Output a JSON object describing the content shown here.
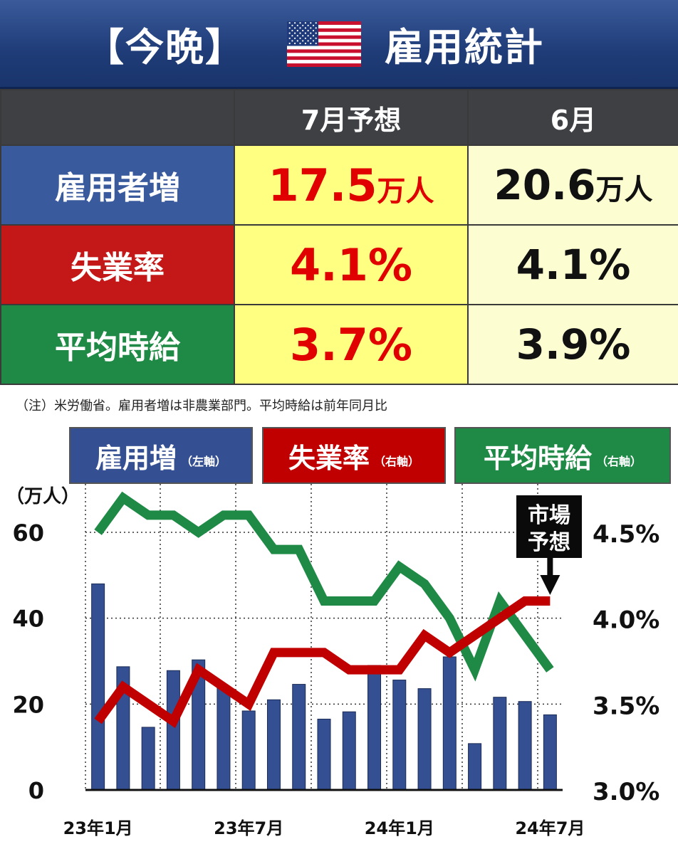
{
  "header": {
    "left": "【今晩】",
    "right": "雇用統計",
    "flag_icon": "us-flag-icon"
  },
  "table": {
    "columns": [
      "",
      "7月予想",
      "6月"
    ],
    "rows": [
      {
        "label": "雇用者増",
        "forecast": "17.5",
        "forecast_unit": "万人",
        "previous": "20.6",
        "previous_unit": "万人",
        "color": "#3a5a9e"
      },
      {
        "label": "失業率",
        "forecast": "4.1%",
        "forecast_unit": "",
        "previous": "4.1%",
        "previous_unit": "",
        "color": "#c41818"
      },
      {
        "label": "平均時給",
        "forecast": "3.7%",
        "forecast_unit": "",
        "previous": "3.9%",
        "previous_unit": "",
        "color": "#1f8a45"
      }
    ]
  },
  "note": "（注）米労働省。雇用者増は非農業部門。平均時給は前年同月比",
  "legend": [
    {
      "name": "雇用増",
      "axis": "（左軸）",
      "color": "#344f92"
    },
    {
      "name": "失業率",
      "axis": "（右軸）",
      "color": "#c00000"
    },
    {
      "name": "平均時給",
      "axis": "（右軸）",
      "color": "#1e8a46"
    }
  ],
  "chart_data": {
    "type": "bar",
    "ylabel": "（万人）",
    "ylim": [
      0,
      60
    ],
    "y2lim": [
      3.0,
      4.5
    ],
    "yticks": [
      0,
      20,
      40,
      60
    ],
    "y2ticks": [
      "3.0%",
      "3.5%",
      "4.0%",
      "4.5%"
    ],
    "xtick_labels": [
      "23年1月",
      "23年7月",
      "24年1月",
      "24年7月"
    ],
    "xtick_index": [
      0,
      6,
      12,
      18
    ],
    "categories": [
      "23/1",
      "23/2",
      "23/3",
      "23/4",
      "23/5",
      "23/6",
      "23/7",
      "23/8",
      "23/9",
      "23/10",
      "23/11",
      "23/12",
      "24/1",
      "24/2",
      "24/3",
      "24/4",
      "24/5",
      "24/6",
      "24/7"
    ],
    "series": [
      {
        "name": "雇用増",
        "axis": "left",
        "kind": "bar",
        "color": "#344f92",
        "values": [
          48,
          28.7,
          14.6,
          27.8,
          30.3,
          24,
          18.4,
          21,
          24.6,
          16.5,
          18.2,
          29,
          25.6,
          23.6,
          31,
          10.8,
          21.6,
          20.6,
          17.5
        ]
      },
      {
        "name": "失業率",
        "axis": "right",
        "kind": "line",
        "color": "#c00000",
        "values": [
          3.4,
          3.6,
          3.5,
          3.4,
          3.7,
          3.6,
          3.5,
          3.8,
          3.8,
          3.8,
          3.7,
          3.7,
          3.7,
          3.9,
          3.8,
          3.9,
          4.0,
          4.1,
          4.1
        ]
      },
      {
        "name": "平均時給",
        "axis": "right",
        "kind": "line",
        "color": "#1e8a46",
        "values": [
          4.5,
          4.7,
          4.6,
          4.6,
          4.5,
          4.6,
          4.6,
          4.4,
          4.4,
          4.1,
          4.1,
          4.1,
          4.3,
          4.2,
          4.0,
          3.7,
          4.1,
          3.9,
          3.7
        ]
      }
    ],
    "annotation": {
      "line1": "市場",
      "line2": "予想",
      "target_index": 18
    }
  }
}
